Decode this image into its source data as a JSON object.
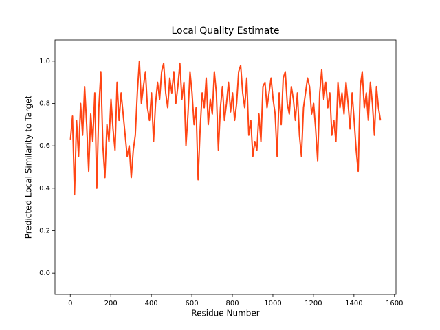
{
  "chart_data": {
    "type": "line",
    "title": "Local Quality Estimate",
    "xlabel": "Residue Number",
    "ylabel": "Predicted Local Similarity to Target",
    "xlim": [
      -75.5,
      1607.5
    ],
    "ylim": [
      -0.1,
      1.1
    ],
    "xticks": [
      0,
      200,
      400,
      600,
      800,
      1000,
      1200,
      1400,
      1600
    ],
    "yticks": [
      {
        "value": 0,
        "label": "0.0"
      },
      0.2,
      0.4,
      0.6,
      0.8,
      {
        "value": 1,
        "label": "1.0"
      }
    ],
    "grid": false,
    "x": [
      1,
      11,
      21,
      31,
      41,
      51,
      61,
      71,
      81,
      91,
      101,
      111,
      121,
      131,
      141,
      151,
      161,
      171,
      181,
      191,
      201,
      211,
      221,
      231,
      241,
      251,
      261,
      271,
      281,
      291,
      301,
      311,
      321,
      331,
      341,
      351,
      361,
      371,
      381,
      391,
      401,
      411,
      421,
      431,
      441,
      451,
      461,
      471,
      481,
      491,
      501,
      511,
      521,
      531,
      541,
      551,
      561,
      571,
      581,
      591,
      601,
      611,
      621,
      631,
      641,
      651,
      661,
      671,
      681,
      691,
      701,
      711,
      721,
      731,
      741,
      751,
      761,
      771,
      781,
      791,
      801,
      811,
      821,
      831,
      841,
      851,
      861,
      871,
      881,
      891,
      901,
      911,
      921,
      931,
      941,
      951,
      961,
      971,
      981,
      991,
      1001,
      1011,
      1021,
      1031,
      1041,
      1051,
      1061,
      1071,
      1081,
      1091,
      1101,
      1111,
      1121,
      1131,
      1141,
      1151,
      1161,
      1171,
      1181,
      1191,
      1201,
      1211,
      1221,
      1231,
      1241,
      1251,
      1261,
      1271,
      1281,
      1291,
      1301,
      1311,
      1321,
      1331,
      1341,
      1351,
      1361,
      1371,
      1381,
      1391,
      1401,
      1411,
      1421,
      1431,
      1441,
      1451,
      1461,
      1471,
      1481,
      1491,
      1501,
      1511,
      1521,
      1531
    ],
    "series": [
      {
        "color": "#ff4514",
        "values": [
          0.63,
          0.74,
          0.37,
          0.72,
          0.55,
          0.8,
          0.65,
          0.88,
          0.7,
          0.48,
          0.75,
          0.62,
          0.85,
          0.4,
          0.78,
          0.95,
          0.6,
          0.45,
          0.7,
          0.62,
          0.82,
          0.68,
          0.58,
          0.9,
          0.72,
          0.85,
          0.75,
          0.65,
          0.55,
          0.6,
          0.45,
          0.58,
          0.65,
          0.85,
          1.0,
          0.8,
          0.88,
          0.95,
          0.78,
          0.72,
          0.85,
          0.62,
          0.8,
          0.9,
          0.82,
          0.95,
          0.99,
          0.85,
          0.78,
          0.92,
          0.85,
          0.95,
          0.8,
          0.88,
          0.99,
          0.82,
          0.9,
          0.6,
          0.75,
          0.95,
          0.85,
          0.7,
          0.78,
          0.44,
          0.68,
          0.85,
          0.78,
          0.92,
          0.7,
          0.82,
          0.75,
          0.95,
          0.85,
          0.58,
          0.78,
          0.88,
          0.72,
          0.8,
          0.9,
          0.76,
          0.85,
          0.72,
          0.8,
          0.95,
          0.98,
          0.85,
          0.78,
          0.92,
          0.65,
          0.72,
          0.55,
          0.62,
          0.58,
          0.75,
          0.62,
          0.88,
          0.9,
          0.78,
          0.85,
          0.92,
          0.82,
          0.75,
          0.55,
          0.85,
          0.7,
          0.92,
          0.95,
          0.8,
          0.75,
          0.88,
          0.82,
          0.72,
          0.85,
          0.65,
          0.55,
          0.78,
          0.85,
          0.92,
          0.88,
          0.75,
          0.8,
          0.68,
          0.53,
          0.85,
          0.96,
          0.82,
          0.9,
          0.78,
          0.85,
          0.65,
          0.72,
          0.62,
          0.9,
          0.78,
          0.85,
          0.75,
          0.9,
          0.8,
          0.68,
          0.85,
          0.72,
          0.58,
          0.48,
          0.88,
          0.95,
          0.78,
          0.85,
          0.72,
          0.9,
          0.8,
          0.65,
          0.88,
          0.78,
          0.72
        ]
      }
    ]
  }
}
